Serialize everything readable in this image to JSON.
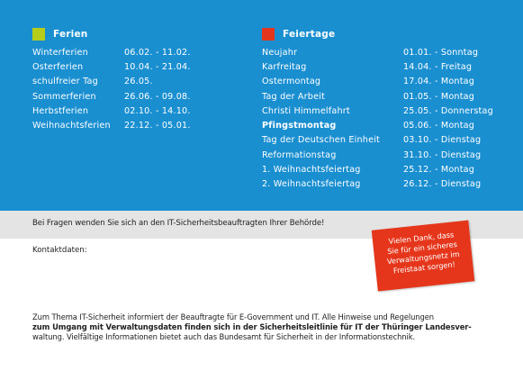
{
  "colors": {
    "blue_panel": "#1a8fd0",
    "ferien_swatch": "#b5cc1a",
    "feiertage_swatch": "#e5361b",
    "grey_band": "#e4e4e4",
    "sticker": "#e5361b"
  },
  "ferien": {
    "title": "Ferien",
    "rows": [
      {
        "name": "Winterferien",
        "date": "06.02. - 11.02."
      },
      {
        "name": "Osterferien",
        "date": "10.04. - 21.04."
      },
      {
        "name": "schulfreier Tag",
        "date": "26.05."
      },
      {
        "name": "Sommerferien",
        "date": "26.06. - 09.08."
      },
      {
        "name": "Herbstferien",
        "date": "02.10. - 14.10."
      },
      {
        "name": "Weihnachtsferien",
        "date": "22.12. - 05.01."
      }
    ]
  },
  "feiertage": {
    "title": "Feiertage",
    "rows": [
      {
        "name": "Neujahr",
        "date": "01.01. - Sonntag"
      },
      {
        "name": "Karfreitag",
        "date": "14.04. - Freitag"
      },
      {
        "name": "Ostermontag",
        "date": "17.04. - Montag"
      },
      {
        "name": "Tag der Arbeit",
        "date": "01.05. - Montag"
      },
      {
        "name": "Christi Himmelfahrt",
        "date": "25.05. - Donnerstag"
      },
      {
        "name": "Pfingstmontag",
        "date": "05.06. - Montag"
      },
      {
        "name": "Tag der Deutschen Einheit",
        "date": "03.10. - Dienstag"
      },
      {
        "name": "Reformationstag",
        "date": "31.10. - Dienstag"
      },
      {
        "name": "1. Weihnachtsfeiertag",
        "date": "25.12. - Montag"
      },
      {
        "name": "2. Weihnachtsfeiertag",
        "date": "26.12. - Dienstag"
      }
    ]
  },
  "question": "Bei Fragen wenden Sie sich an den IT-Sicherheitsbeauftragten Ihrer Behörde!",
  "kontakt_label": "Kontaktdaten:",
  "sticker_lines": [
    "Vielen Dank, dass",
    "Sie für ein sicheres",
    "Verwaltungsnetz im",
    "Freistaat sorgen!"
  ],
  "footer": {
    "line1": "Zum Thema IT-Sicherheit informiert der Beauftragte für E-Government und IT. Alle Hinweise und Regelungen",
    "line2": "zum Umgang mit Verwaltungsdaten finden sich in der Sicherheitsleitlinie für IT der Thüringer Landesver-",
    "line3": "waltung. Vielfältige Informationen bietet auch das Bundesamt für Sicherheit in der Informationstechnik."
  }
}
